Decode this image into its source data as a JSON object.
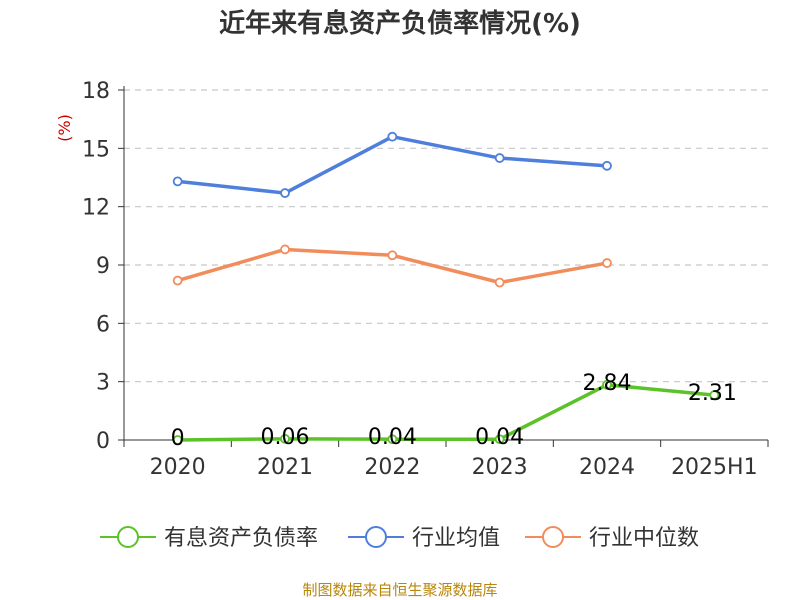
{
  "chart_data": {
    "type": "line",
    "title": "近年来有息资产负债率情况(%)",
    "ylabel": "(%)",
    "categories": [
      "2020",
      "2021",
      "2022",
      "2023",
      "2024",
      "2025H1"
    ],
    "ylim": [
      0,
      18
    ],
    "yticks": [
      0,
      3,
      6,
      9,
      12,
      15,
      18
    ],
    "grid": "horizontal-dashed",
    "legend_position": "bottom",
    "series": [
      {
        "name": "有息资产负债率",
        "color": "#5cc22a",
        "values": [
          0,
          0.06,
          0.04,
          0.04,
          2.84,
          2.31
        ],
        "labels": [
          "0",
          "0.06",
          "0.04",
          "0.04",
          "2.84",
          "2.31"
        ]
      },
      {
        "name": "行业均值",
        "color": "#4e7fdc",
        "values": [
          13.3,
          12.7,
          15.6,
          14.5,
          14.1,
          null
        ]
      },
      {
        "name": "行业中位数",
        "color": "#f28c5a",
        "values": [
          8.2,
          9.8,
          9.5,
          8.1,
          9.1,
          null
        ]
      }
    ]
  },
  "source": "制图数据来自恒生聚源数据库"
}
